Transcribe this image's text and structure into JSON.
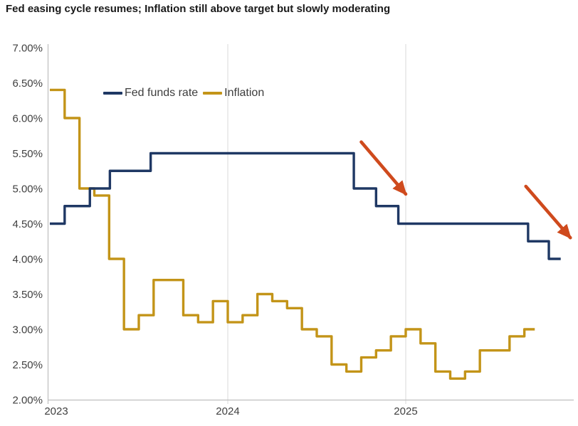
{
  "title": "Fed easing cycle resumes; Inflation still above target but slowly moderating",
  "colors": {
    "fed_funds": "#1F3864",
    "inflation": "#C39418",
    "arrow": "#CF4A1D",
    "gridline": "#D9D9D9",
    "axis": "#BFBFBF",
    "tick_text": "#404040",
    "title_text": "#1A1A1A"
  },
  "chart_data": {
    "type": "line",
    "subtype": "step",
    "title": "Fed easing cycle resumes; Inflation still above target but slowly moderating",
    "grid": "vertical-only",
    "legend_position": "inside-top-left",
    "x_axis": {
      "unit": "months since Jan 2023",
      "ticks": [
        {
          "t": 0,
          "label": "2023"
        },
        {
          "t": 12,
          "label": "2024"
        },
        {
          "t": 24,
          "label": "2025"
        }
      ],
      "gridlines_t": [
        12,
        24
      ]
    },
    "y_axis": {
      "min": 2.0,
      "max": 7.0,
      "step": 0.5,
      "tick_labels": [
        "7.00%",
        "6.50%",
        "6.00%",
        "5.50%",
        "5.00%",
        "4.50%",
        "4.00%",
        "3.50%",
        "3.00%",
        "2.50%",
        "2.00%"
      ]
    },
    "series": [
      {
        "name": "Fed funds rate",
        "color": "#1F3864",
        "style": "step",
        "points": [
          {
            "t": 0,
            "date": "Jan 2023",
            "value": 4.5
          },
          {
            "t": 1.0,
            "date": "Feb 2023",
            "value": 4.75
          },
          {
            "t": 2.7,
            "date": "Mar 2023",
            "value": 5.0
          },
          {
            "t": 4.05,
            "date": "May 2023",
            "value": 5.25
          },
          {
            "t": 6.8,
            "date": "Jul 2023",
            "value": 5.5
          },
          {
            "t": 20.5,
            "date": "Sep 2024",
            "value": 5.0
          },
          {
            "t": 22.0,
            "date": "Nov 2024",
            "value": 4.75
          },
          {
            "t": 23.5,
            "date": "Dec 2024",
            "value": 4.5
          },
          {
            "t": 32.25,
            "date": "Sep 2025",
            "value": 4.25
          },
          {
            "t": 33.65,
            "date": "Oct 2025",
            "value": 4.0
          }
        ],
        "end_t": 34.45
      },
      {
        "name": "Inflation",
        "color": "#C39418",
        "style": "step-monthly",
        "start_t": 0,
        "start_date": "Jan 2023",
        "values": [
          6.4,
          6.0,
          5.0,
          4.9,
          4.0,
          3.0,
          3.2,
          3.7,
          3.7,
          3.2,
          3.1,
          3.4,
          3.1,
          3.2,
          3.5,
          3.4,
          3.3,
          3.0,
          2.9,
          2.5,
          2.4,
          2.6,
          2.7,
          2.9,
          3.0,
          2.8,
          2.4,
          2.3,
          2.4,
          2.7,
          2.7,
          2.9,
          3.0
        ],
        "end_t": 32.7
      }
    ],
    "annotations": [
      {
        "type": "arrow",
        "color": "#CF4A1D",
        "from": {
          "t": 21.0,
          "v": 5.66
        },
        "to": {
          "t": 24.0,
          "v": 4.92
        }
      },
      {
        "type": "arrow",
        "color": "#CF4A1D",
        "from": {
          "t": 32.1,
          "v": 5.03
        },
        "to": {
          "t": 35.1,
          "v": 4.3
        }
      }
    ]
  }
}
